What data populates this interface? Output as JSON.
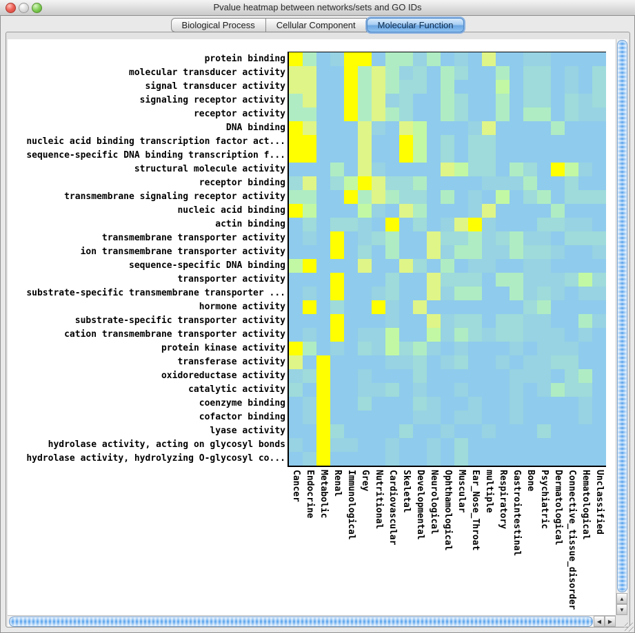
{
  "titlebar": {
    "title": "Pvalue heatmap between networks/sets and GO IDs"
  },
  "tabs": [
    {
      "label": "Biological Process",
      "selected": false
    },
    {
      "label": "Cellular Component",
      "selected": false
    },
    {
      "label": "Molecular Function",
      "selected": true
    }
  ],
  "colors": {
    "traffic_red": "#cf4338",
    "traffic_middle": "#cfcfcf",
    "traffic_green": "#53a52c",
    "tab_selected_accent": "#4c88c8",
    "scrollbar_thumb_blue": "#5ea6ee",
    "axis_line": "#000000",
    "heatmap_base_blue": "#8fcbec"
  },
  "scrollbars": {
    "up_arrow": "▲",
    "down_arrow": "▼",
    "left_arrow": "◀",
    "right_arrow": "▶"
  },
  "chart_data": {
    "type": "heatmap",
    "title": "",
    "xlabel": "",
    "ylabel": "",
    "legend": "none",
    "value_encoding": "cell colors encode p-value significance: Y (yellow) = most significant, L/g/M/A/b decreasing, B (base blue) = least",
    "rows": [
      "protein binding",
      "molecular transducer activity",
      "signal transducer activity",
      "signaling receptor activity",
      "receptor activity",
      "DNA binding",
      "nucleic acid binding transcription factor act...",
      "sequence-specific DNA binding transcription f...",
      "structural molecule activity",
      "receptor binding",
      "transmembrane signaling receptor activity",
      "nucleic acid binding",
      "actin binding",
      "transmembrane transporter activity",
      "ion transmembrane transporter activity",
      "sequence-specific DNA binding",
      "transporter activity",
      "substrate-specific transmembrane transporter ...",
      "hormone activity",
      "substrate-specific transporter activity",
      "cation transmembrane transporter activity",
      "protein kinase activity",
      "transferase activity",
      "oxidoreductase activity",
      "catalytic activity",
      "coenzyme binding",
      "cofactor binding",
      "lyase activity",
      "hydrolase activity, acting on glycosyl bonds",
      "hydrolase activity, hydrolyzing O-glycosyl co..."
    ],
    "columns": [
      "Cancer",
      "Endocrine",
      "Metabolic",
      "Renal",
      "Immunological",
      "Grey",
      "Nutritional",
      "Cardiovascular",
      "Skeletal",
      "Developmental",
      "Neurological",
      "Ophthamological",
      "Muscular",
      "Ear_Nose_Throat",
      "multiple",
      "Respiratory",
      "Gastrointestinal",
      "Bone",
      "Psychiatric",
      "Dermatological",
      "Connective_tissue_disorder",
      "Hematological",
      "Unclassified"
    ],
    "palette": {
      "Y": "#ffff00",
      "L": "#dff588",
      "g": "#c2f8a3",
      "M": "#afecc3",
      "A": "#9edbda",
      "b": "#97d3e2",
      "B": "#8fcbec"
    },
    "cells": [
      "YMBbYYBMMbMBbBLBBbbBBBB",
      "LLBBYMLMbABMABBMBAABbBA",
      "LLBBYMLMAABMBBBgBAABbBA",
      "MLBBYMLbABBMABBMBAABAbA",
      "MMBBYMLMABBMABBMBMMBAbb",
      "YLBBBLbBLgBBBbLBBBBMBBB",
      "YYBBBLBBYgBABAABBBBBBBB",
      "YYBBBLBBYgBABAABBBBBBBB",
      "BBBMBLbBBBBLgAABMABYgbB",
      "ALBAgYLAAMBBBBbbbMBBABB",
      "MMBBYMLMAABMBbBgBAMBAAA",
      "YgBBBgbBLMBBBbLBBBBMBBB",
      "BABAAbBYBABbLYbBBBAAbbB",
      "BbBYBbAMBBLAAMbAMbbBAAA",
      "BBBYBABMBBLbMMbbMAAbBBb",
      "gYBBBLBBLABMBbbBBbbBBBB",
      "BBBYBBBABBLAAABMMbbbAgA",
      "BbBYBBbABBLbMMBBMbAbBbb",
      "BYBABBYbBLBBBBBBBAMBBBB",
      "BBBYBBBbBBLbAABAAbbBBMb",
      "BbBYBbbgBBgbMAbAAbbbBbB",
      "YMBbBAbgAMbBbBBBbBbbbBB",
      "LBYBBBBbbABbABBbBbbAABB",
      "bAYBBbBBBABBBBBBbbbBAMB",
      "ABYBBbbABbBBbBBBbBbMAAB",
      "BbYBBABBBAbBBbBBbBBBBbB",
      "BbYBBBBBBbbBbbBBbBBBBbB",
      "BBYABBBBABBbBBbBBBABBBB",
      "bBYbbBBbBBbBABBBBBBBBBB",
      "BbYBBBBbBBbBABBBBBBBBBB"
    ]
  }
}
